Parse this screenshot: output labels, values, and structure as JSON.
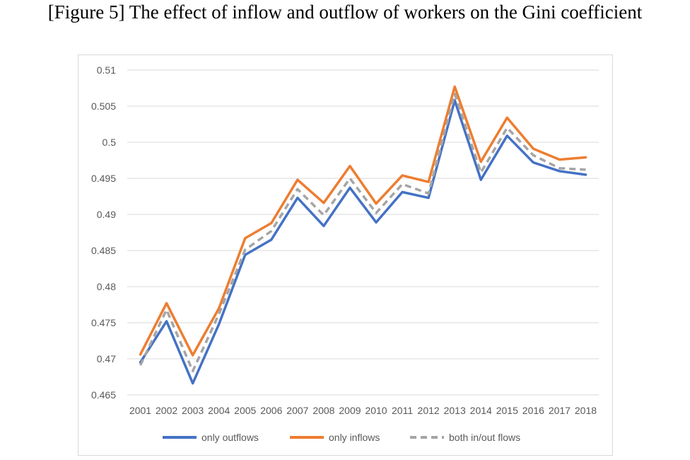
{
  "figure_title": "[Figure 5] The effect of inflow and outflow of workers on the Gini coefficient",
  "chart_data": {
    "type": "line",
    "title": "",
    "xlabel": "",
    "ylabel": "",
    "categories": [
      "2001",
      "2002",
      "2003",
      "2004",
      "2005",
      "2006",
      "2007",
      "2008",
      "2009",
      "2010",
      "2011",
      "2012",
      "2013",
      "2014",
      "2015",
      "2016",
      "2017",
      "2018"
    ],
    "ylim": [
      0.465,
      0.51
    ],
    "yticks": [
      0.465,
      0.47,
      0.475,
      0.48,
      0.485,
      0.49,
      0.495,
      0.5,
      0.505,
      0.51
    ],
    "ytick_labels": [
      "0.465",
      "0.47",
      "0.475",
      "0.48",
      "0.485",
      "0.49",
      "0.495",
      "0.5",
      "0.505",
      "0.51"
    ],
    "grid": true,
    "legend_position": "bottom",
    "series": [
      {
        "name": "only outflows",
        "color": "#4472C4",
        "dash": "solid",
        "values": [
          0.4695,
          0.4752,
          0.4666,
          0.4748,
          0.4844,
          0.4865,
          0.4923,
          0.4884,
          0.4937,
          0.4889,
          0.4931,
          0.4923,
          0.5058,
          0.4948,
          0.5009,
          0.4972,
          0.496,
          0.4955
        ]
      },
      {
        "name": "only inflows",
        "color": "#ED7D31",
        "dash": "solid",
        "values": [
          0.4706,
          0.4777,
          0.4705,
          0.477,
          0.4867,
          0.4888,
          0.4948,
          0.4916,
          0.4967,
          0.4915,
          0.4954,
          0.4945,
          0.5077,
          0.4973,
          0.5034,
          0.4991,
          0.4976,
          0.4979
        ]
      },
      {
        "name": "both in/out flows",
        "color": "#A5A5A5",
        "dash": "dashed",
        "values": [
          0.4691,
          0.4768,
          0.4683,
          0.4762,
          0.4851,
          0.4877,
          0.4935,
          0.4899,
          0.495,
          0.4902,
          0.4942,
          0.4929,
          0.5067,
          0.4958,
          0.502,
          0.4982,
          0.4964,
          0.4962
        ]
      }
    ]
  }
}
